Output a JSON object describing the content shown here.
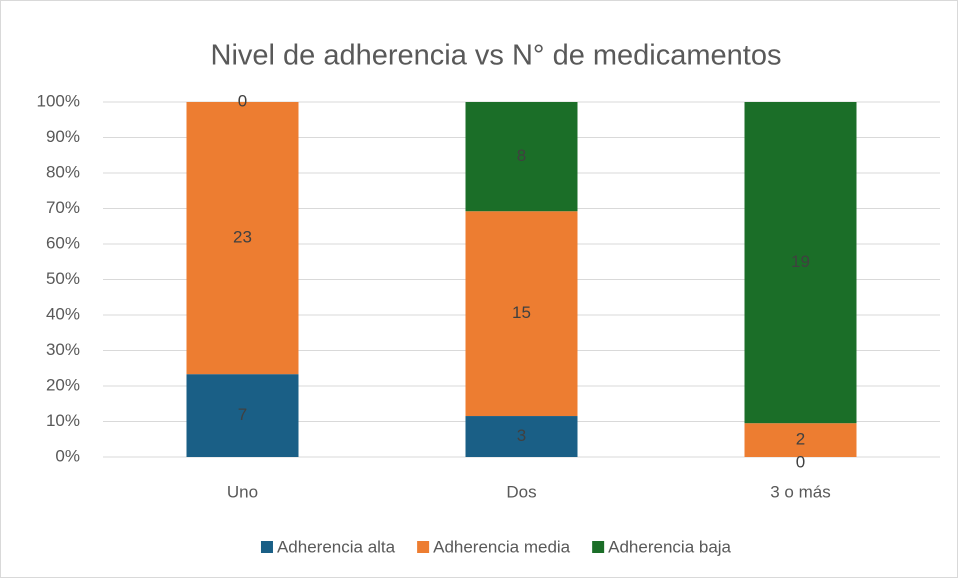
{
  "chart_data": {
    "type": "bar",
    "stacked": "percent",
    "title": "Nivel de adherencia vs N° de medicamentos",
    "categories": [
      "Uno",
      "Dos",
      "3 o más"
    ],
    "series": [
      {
        "name": "Adherencia alta",
        "color": "#1a5f86",
        "values": [
          7,
          3,
          0
        ]
      },
      {
        "name": "Adherencia media",
        "color": "#ed7d31",
        "values": [
          23,
          15,
          2
        ]
      },
      {
        "name": "Adherencia baja",
        "color": "#1b6e28",
        "values": [
          0,
          8,
          19
        ]
      }
    ],
    "ylim": [
      0,
      100
    ],
    "yticks": [
      {
        "value": 0,
        "label": "0%"
      },
      {
        "value": 10,
        "label": "10%"
      },
      {
        "value": 20,
        "label": "20%"
      },
      {
        "value": 30,
        "label": "30%"
      },
      {
        "value": 40,
        "label": "40%"
      },
      {
        "value": 50,
        "label": "50%"
      },
      {
        "value": 60,
        "label": "60%"
      },
      {
        "value": 70,
        "label": "70%"
      },
      {
        "value": 80,
        "label": "80%"
      },
      {
        "value": 90,
        "label": "90%"
      },
      {
        "value": 100,
        "label": "100%"
      }
    ],
    "grid": true,
    "legend": "bottom"
  }
}
